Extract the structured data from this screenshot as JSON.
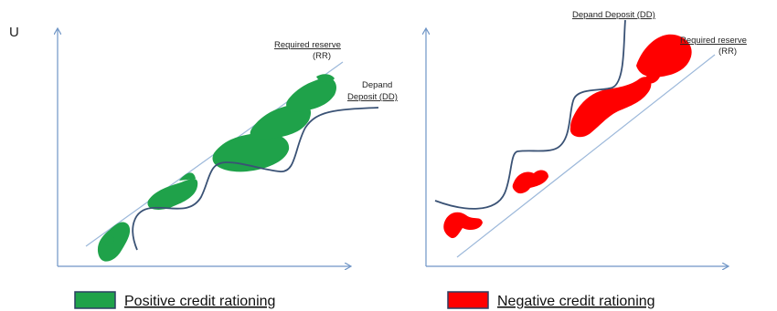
{
  "y_axis_label": "U",
  "left_panel": {
    "rr_label_line1": "Required reserve",
    "rr_label_line2": "(RR)",
    "dd_label_line1": "Depand",
    "dd_label_line2": "Deposit (DD)"
  },
  "right_panel": {
    "dd_label": "Depand Deposit (DD)",
    "rr_label_line1": "Required reserve",
    "rr_label_line2": "(RR)"
  },
  "legend": {
    "positive": {
      "label": "Positive credit rationing",
      "color": "#1fa24a"
    },
    "negative": {
      "label": "Negative credit rationing",
      "color": "#ff0000"
    }
  },
  "colors": {
    "axis": "#6f95c6",
    "rr_line": "#9cb8da",
    "dd_curve": "#3a5275",
    "positive": "#1fa24a",
    "negative": "#ff0000"
  }
}
